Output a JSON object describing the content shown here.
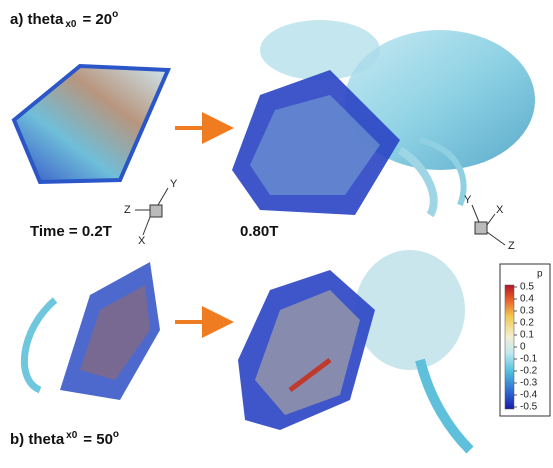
{
  "panel_a": {
    "prefix": "a) theta",
    "subscript": "x0",
    "suffix": "= 20",
    "degree": "o"
  },
  "panel_b": {
    "prefix": "b) theta",
    "subscript": "x0",
    "suffix": "= 50",
    "degree": "o"
  },
  "time_left": "Time = 0.2T",
  "time_right": "0.80T",
  "triad_left": {
    "y": "Y",
    "z": "Z",
    "x": "X"
  },
  "triad_right": {
    "y": "Y",
    "x": "X",
    "z": "Z"
  },
  "colorbar": {
    "title": "p",
    "ticks": [
      0.5,
      0.4,
      0.3,
      0.2,
      0.1,
      0,
      -0.1,
      -0.2,
      -0.3,
      -0.4,
      -0.5
    ]
  }
}
